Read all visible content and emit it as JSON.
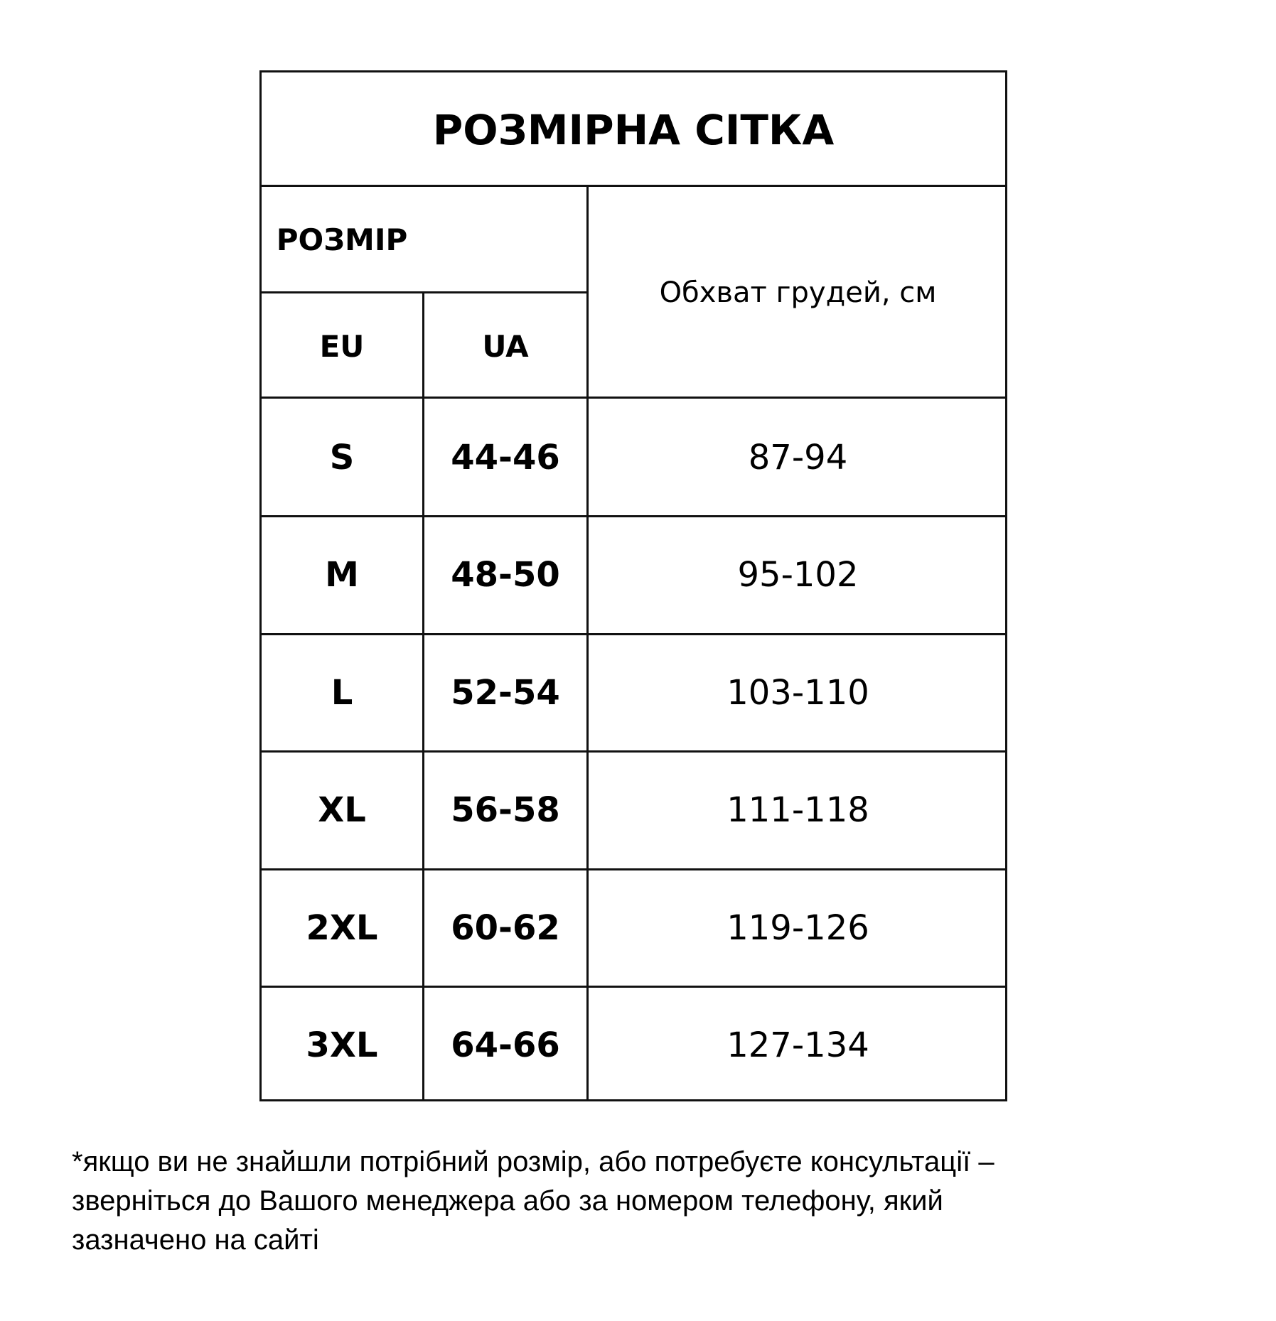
{
  "title": "РОЗМІРНА СІТКА",
  "header": {
    "size_group": "РОЗМІР",
    "eu": "EU",
    "ua": "UA",
    "chest": "Обхват грудей, см"
  },
  "rows": [
    {
      "eu": "S",
      "ua": "44-46",
      "chest": "87-94"
    },
    {
      "eu": "M",
      "ua": "48-50",
      "chest": "95-102"
    },
    {
      "eu": "L",
      "ua": "52-54",
      "chest": "103-110"
    },
    {
      "eu": "XL",
      "ua": "56-58",
      "chest": "111-118"
    },
    {
      "eu": "2XL",
      "ua": "60-62",
      "chest": "119-126"
    },
    {
      "eu": "3XL",
      "ua": "64-66",
      "chest": "127-134"
    }
  ],
  "footnote": [
    "*якщо ви не знайшли потрібний розмір, або потребуєте консультації –",
    "зверніться до Вашого менеджера або за номером телефону, який",
    "зазначено на сайті"
  ]
}
